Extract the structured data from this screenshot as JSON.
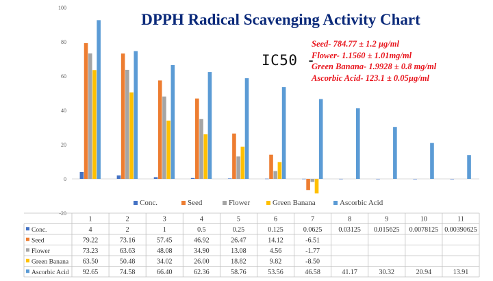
{
  "chart_data": {
    "type": "bar",
    "title": "DPPH Radical Scavenging Activity Chart",
    "ylim": [
      -20,
      100
    ],
    "yticks": [
      -20,
      0,
      20,
      40,
      60,
      80,
      100
    ],
    "categories": [
      "1",
      "2",
      "3",
      "4",
      "5",
      "6",
      "7",
      "8",
      "9",
      "10",
      "11"
    ],
    "series": [
      {
        "name": "Conc.",
        "color": "#4472c4",
        "labels": [
          "4",
          "2",
          "1",
          "0.5",
          "0.25",
          "0.125",
          "0.0625",
          "0.03125",
          "0.015625",
          "0.0078125",
          "0.00390625"
        ],
        "values": [
          4,
          2,
          1,
          0.5,
          0.25,
          0.125,
          0.0625,
          0.03125,
          0.015625,
          0.0078125,
          0.00390625
        ]
      },
      {
        "name": "Seed",
        "color": "#ed7d31",
        "labels": [
          "79.22",
          "73.16",
          "57.45",
          "46.92",
          "26.47",
          "14.12",
          "-6.51",
          "",
          "",
          "",
          ""
        ],
        "values": [
          79.22,
          73.16,
          57.45,
          46.92,
          26.47,
          14.12,
          -6.51,
          null,
          null,
          null,
          null
        ]
      },
      {
        "name": "Flower",
        "color": "#a5a5a5",
        "labels": [
          "73.23",
          "63.63",
          "48.08",
          "34.90",
          "13.08",
          "4.56",
          "-1.77",
          "",
          "",
          "",
          ""
        ],
        "values": [
          73.23,
          63.63,
          48.08,
          34.9,
          13.08,
          4.56,
          -1.77,
          null,
          null,
          null,
          null
        ]
      },
      {
        "name": "Green Banana",
        "color": "#ffc000",
        "labels": [
          "63.50",
          "50.48",
          "34.02",
          "26.00",
          "18.82",
          "9.82",
          "-8.50",
          "",
          "",
          "",
          ""
        ],
        "values": [
          63.5,
          50.48,
          34.02,
          26.0,
          18.82,
          9.82,
          -8.5,
          null,
          null,
          null,
          null
        ]
      },
      {
        "name": "Ascorbic Acid",
        "color": "#5b9bd5",
        "labels": [
          "92.65",
          "74.58",
          "66.40",
          "62.36",
          "58.76",
          "53.56",
          "46.58",
          "41.17",
          "30.32",
          "20.94",
          "13.91"
        ],
        "values": [
          92.65,
          74.58,
          66.4,
          62.36,
          58.76,
          53.56,
          46.58,
          41.17,
          30.32,
          20.94,
          13.91
        ]
      }
    ],
    "annotation": {
      "prefix": "IC50 -",
      "lines": [
        "Seed- 784.77 ± 1.2 µg/ml",
        "Flower- 1.1560 ± 1.01mg/ml",
        "Green Banana- 1.9928 ± 0.8 mg/ml",
        "Ascorbic Acid- 123.1 ±  0.05µg/ml"
      ]
    },
    "legend_position": "bottom",
    "grid": false
  }
}
